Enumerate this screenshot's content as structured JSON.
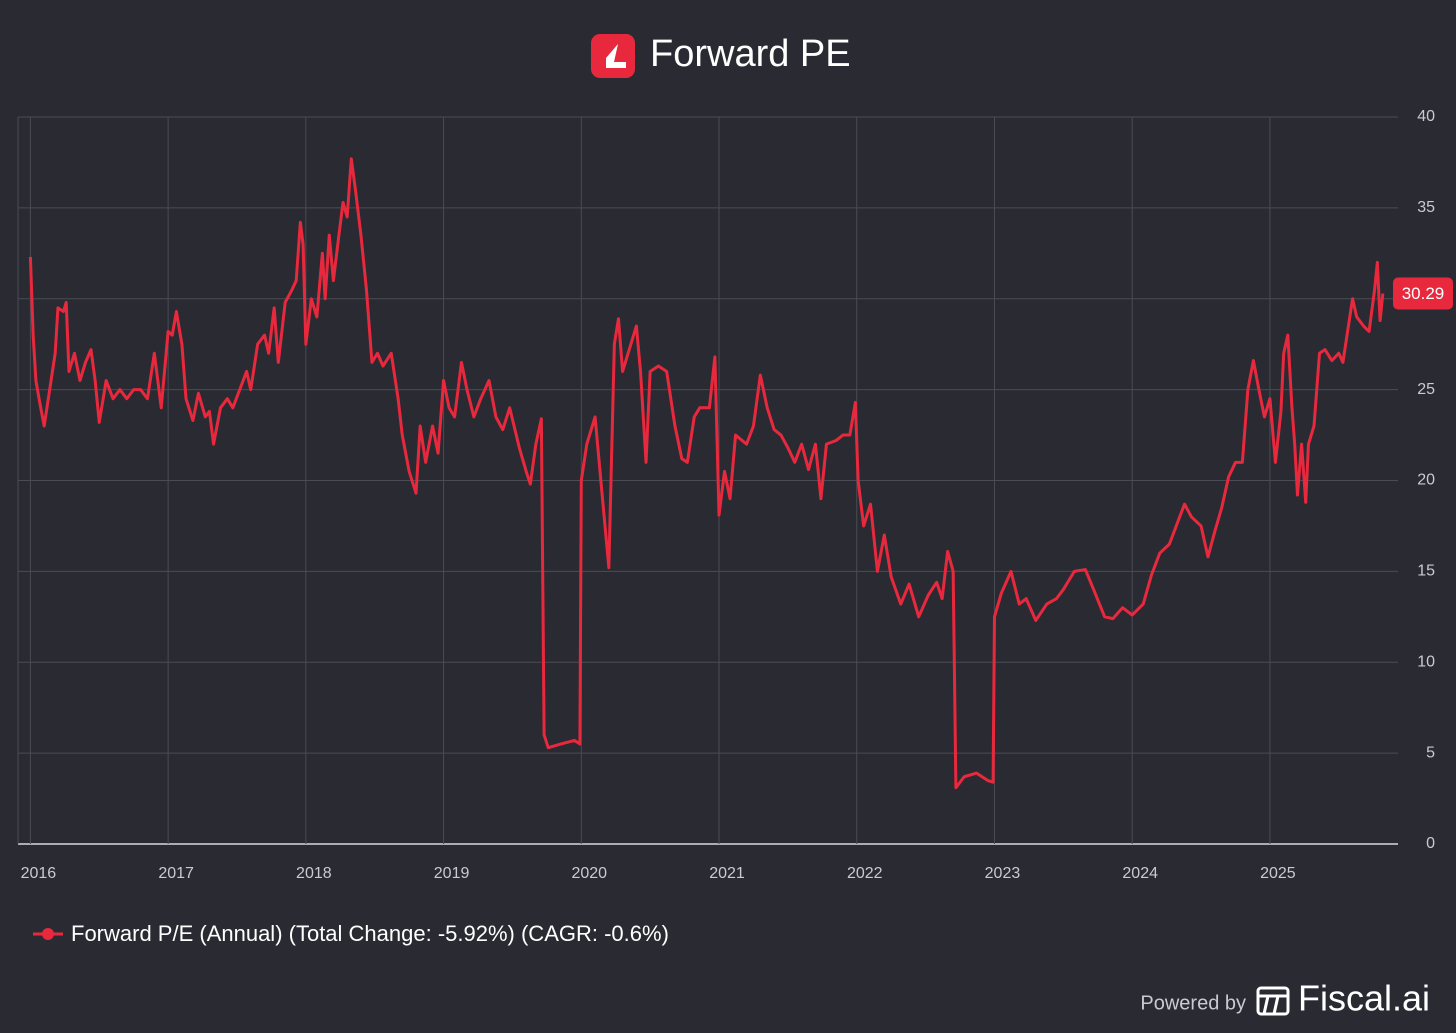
{
  "chart_data": {
    "type": "line",
    "title": "Forward PE",
    "xlim": [
      2015.91,
      2025.93
    ],
    "xticks": [
      2016,
      2017,
      2018,
      2019,
      2020,
      2021,
      2022,
      2023,
      2024,
      2025
    ],
    "ylim": [
      0,
      40
    ],
    "yticks": [
      0,
      5,
      10,
      15,
      20,
      25,
      30,
      35,
      40
    ],
    "grid": true,
    "series": [
      {
        "name": "Forward P/E (Annual) (Total Change: -5.92%) (CAGR: -0.6%)",
        "color": "#e8293d",
        "x": [
          2016.0,
          2016.02,
          2016.04,
          2016.07,
          2016.1,
          2016.14,
          2016.18,
          2016.2,
          2016.24,
          2016.26,
          2016.28,
          2016.32,
          2016.36,
          2016.4,
          2016.44,
          2016.47,
          2016.5,
          2016.55,
          2016.6,
          2016.65,
          2016.7,
          2016.75,
          2016.8,
          2016.85,
          2016.9,
          2016.95,
          2017.0,
          2017.03,
          2017.06,
          2017.1,
          2017.13,
          2017.18,
          2017.22,
          2017.27,
          2017.3,
          2017.33,
          2017.38,
          2017.43,
          2017.47,
          2017.52,
          2017.57,
          2017.6,
          2017.65,
          2017.7,
          2017.73,
          2017.77,
          2017.8,
          2017.85,
          2017.9,
          2017.93,
          2017.96,
          2017.98,
          2018.0,
          2018.04,
          2018.08,
          2018.12,
          2018.14,
          2018.17,
          2018.2,
          2018.24,
          2018.27,
          2018.3,
          2018.33,
          2018.36,
          2018.4,
          2018.44,
          2018.48,
          2018.52,
          2018.56,
          2018.62,
          2018.67,
          2018.7,
          2018.75,
          2018.8,
          2018.83,
          2018.87,
          2018.92,
          2018.96,
          2019.0,
          2019.04,
          2019.08,
          2019.13,
          2019.17,
          2019.22,
          2019.27,
          2019.33,
          2019.38,
          2019.43,
          2019.48,
          2019.55,
          2019.6,
          2019.63,
          2019.67,
          2019.71,
          2019.73,
          2019.76,
          2019.85,
          2019.95,
          2019.99,
          2020.0,
          2020.04,
          2020.1,
          2020.13,
          2020.16,
          2020.2,
          2020.24,
          2020.27,
          2020.3,
          2020.36,
          2020.4,
          2020.43,
          2020.47,
          2020.5,
          2020.56,
          2020.62,
          2020.68,
          2020.73,
          2020.77,
          2020.82,
          2020.86,
          2020.93,
          2020.97,
          2021.0,
          2021.04,
          2021.08,
          2021.12,
          2021.2,
          2021.25,
          2021.3,
          2021.35,
          2021.4,
          2021.45,
          2021.5,
          2021.55,
          2021.6,
          2021.65,
          2021.7,
          2021.74,
          2021.78,
          2021.85,
          2021.9,
          2021.95,
          2021.99,
          2022.01,
          2022.05,
          2022.1,
          2022.15,
          2022.2,
          2022.25,
          2022.32,
          2022.38,
          2022.45,
          2022.52,
          2022.58,
          2022.62,
          2022.66,
          2022.7,
          2022.72,
          2022.78,
          2022.87,
          2022.95,
          2022.99,
          2023.0,
          2023.05,
          2023.12,
          2023.18,
          2023.23,
          2023.3,
          2023.38,
          2023.45,
          2023.5,
          2023.58,
          2023.66,
          2023.72,
          2023.8,
          2023.86,
          2023.93,
          2024.0,
          2024.08,
          2024.14,
          2024.2,
          2024.27,
          2024.32,
          2024.38,
          2024.43,
          2024.5,
          2024.55,
          2024.6,
          2024.65,
          2024.7,
          2024.75,
          2024.8,
          2024.84,
          2024.88,
          2024.92,
          2024.96,
          2025.0,
          2025.04,
          2025.08,
          2025.1,
          2025.13,
          2025.16,
          2025.18,
          2025.2,
          2025.23,
          2025.26,
          2025.28,
          2025.32,
          2025.36,
          2025.4,
          2025.45,
          2025.5,
          2025.53,
          2025.56,
          2025.6,
          2025.63,
          2025.68,
          2025.72,
          2025.76,
          2025.78,
          2025.8,
          2025.82
        ],
        "values": [
          32.3,
          28,
          25.5,
          24.2,
          23,
          25,
          27,
          29.5,
          29.3,
          29.8,
          26,
          27,
          25.5,
          26.5,
          27.2,
          25.5,
          23.2,
          25.5,
          24.5,
          25,
          24.5,
          25,
          25,
          24.5,
          27,
          24,
          28.2,
          28,
          29.3,
          27.5,
          24.5,
          23.3,
          24.8,
          23.5,
          23.8,
          22,
          24,
          24.5,
          24,
          25,
          26,
          25,
          27.5,
          28,
          27,
          29.5,
          26.5,
          29.8,
          30.5,
          31,
          34.2,
          33,
          27.5,
          30,
          29,
          32.5,
          30,
          33.5,
          31,
          33.5,
          35.3,
          34.5,
          37.7,
          36,
          33.5,
          30.5,
          26.5,
          27,
          26.3,
          27,
          24.5,
          22.5,
          20.5,
          19.3,
          23,
          21,
          23,
          21.5,
          25.5,
          24,
          23.5,
          26.5,
          25,
          23.5,
          24.5,
          25.5,
          23.5,
          22.8,
          24,
          21.8,
          20.5,
          19.8,
          22,
          23.4,
          6,
          5.3,
          5.5,
          5.7,
          5.5,
          20,
          22,
          23.5,
          21,
          18.5,
          15.2,
          27.5,
          28.9,
          26,
          27.5,
          28.5,
          26,
          21,
          26,
          26.3,
          26,
          23,
          21.2,
          21,
          23.5,
          24,
          24,
          26.8,
          18.1,
          20.5,
          19,
          22.5,
          22,
          23,
          25.8,
          24,
          22.8,
          22.5,
          21.8,
          21,
          22,
          20.6,
          22,
          19,
          22,
          22.2,
          22.5,
          22.5,
          24.3,
          20,
          17.5,
          18.7,
          15,
          17,
          14.7,
          13.2,
          14.3,
          12.5,
          13.7,
          14.4,
          13.5,
          16.1,
          15,
          3.1,
          3.7,
          3.9,
          3.5,
          3.4,
          12.5,
          13.8,
          15,
          13.2,
          13.5,
          12.3,
          13.2,
          13.5,
          14,
          15,
          15.1,
          14,
          12.5,
          12.4,
          13,
          12.6,
          13.2,
          14.8,
          16,
          16.5,
          17.5,
          18.7,
          18,
          17.5,
          15.8,
          17.2,
          18.5,
          20.2,
          21,
          21,
          25,
          26.6,
          25,
          23.5,
          24.5,
          21,
          23.8,
          27,
          28,
          24,
          22,
          19.2,
          22,
          18.8,
          22,
          23,
          27,
          27.2,
          26.6,
          27,
          26.5,
          28,
          30,
          29,
          28.5,
          28.2,
          30.5,
          32,
          28.8,
          30.29
        ]
      }
    ],
    "footer": {
      "prefix": "Powered by",
      "brand": "Fiscal.ai"
    }
  }
}
